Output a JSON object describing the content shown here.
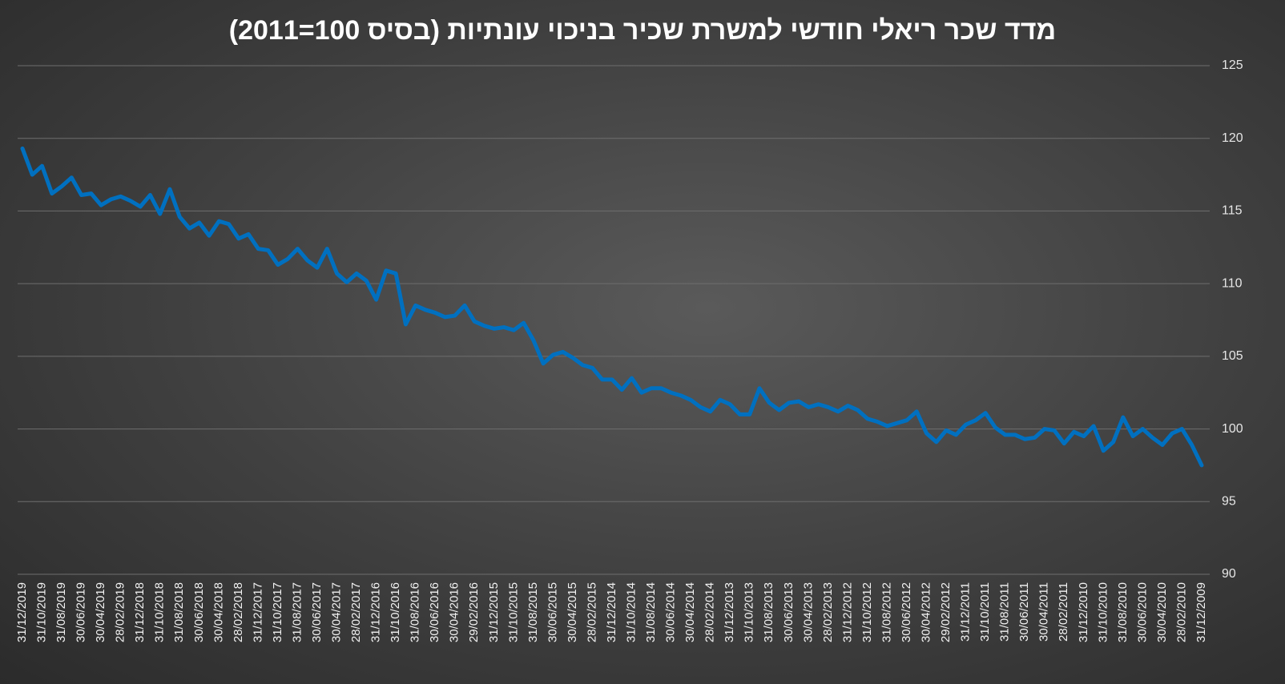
{
  "chart_data": {
    "type": "line",
    "title": "מדד שכר ריאלי חודשי למשרת שכיר בניכוי עונתיות (בסיס 100=2011)",
    "categories": [
      "31/12/2019",
      null,
      "31/10/2019",
      null,
      "31/08/2019",
      null,
      "30/06/2019",
      null,
      "30/04/2019",
      null,
      "28/02/2019",
      null,
      "31/12/2018",
      null,
      "31/10/2018",
      null,
      "31/08/2018",
      null,
      "30/06/2018",
      null,
      "30/04/2018",
      null,
      "28/02/2018",
      null,
      "31/12/2017",
      null,
      "31/10/2017",
      null,
      "31/08/2017",
      null,
      "30/06/2017",
      null,
      "30/04/2017",
      null,
      "28/02/2017",
      null,
      "31/12/2016",
      null,
      "31/10/2016",
      null,
      "31/08/2016",
      null,
      "30/06/2016",
      null,
      "30/04/2016",
      null,
      "29/02/2016",
      null,
      "31/12/2015",
      null,
      "31/10/2015",
      null,
      "31/08/2015",
      null,
      "30/06/2015",
      null,
      "30/04/2015",
      null,
      "28/02/2015",
      null,
      "31/12/2014",
      null,
      "31/10/2014",
      null,
      "31/08/2014",
      null,
      "30/06/2014",
      null,
      "30/04/2014",
      null,
      "28/02/2014",
      null,
      "31/12/2013",
      null,
      "31/10/2013",
      null,
      "31/08/2013",
      null,
      "30/06/2013",
      null,
      "30/04/2013",
      null,
      "28/02/2013",
      null,
      "31/12/2012",
      null,
      "31/10/2012",
      null,
      "31/08/2012",
      null,
      "30/06/2012",
      null,
      "30/04/2012",
      null,
      "29/02/2012",
      null,
      "31/12/2011",
      null,
      "31/10/2011",
      null,
      "31/08/2011",
      null,
      "30/06/2011",
      null,
      "30/04/2011",
      null,
      "28/02/2011",
      null,
      "31/12/2010",
      null,
      "31/10/2010",
      null,
      "31/08/2010",
      null,
      "30/06/2010",
      null,
      "30/04/2010",
      null,
      "28/02/2010",
      null,
      "31/12/2009"
    ],
    "values": [
      119.3,
      117.5,
      118.1,
      116.2,
      116.7,
      117.3,
      116.1,
      116.2,
      115.4,
      115.8,
      116.0,
      115.7,
      115.3,
      116.1,
      114.8,
      116.5,
      114.6,
      113.8,
      114.2,
      113.3,
      114.3,
      114.1,
      113.1,
      113.4,
      112.4,
      112.3,
      111.3,
      111.7,
      112.4,
      111.6,
      111.1,
      112.4,
      110.7,
      110.1,
      110.7,
      110.2,
      108.9,
      110.9,
      110.7,
      107.2,
      108.5,
      108.2,
      108.0,
      107.7,
      107.8,
      108.5,
      107.4,
      107.1,
      106.9,
      107.0,
      106.8,
      107.3,
      106.1,
      104.5,
      105.1,
      105.3,
      104.9,
      104.4,
      104.2,
      103.4,
      103.4,
      102.7,
      103.5,
      102.5,
      102.8,
      102.8,
      102.5,
      102.3,
      102.0,
      101.5,
      101.2,
      102.0,
      101.7,
      101.0,
      101.0,
      102.8,
      101.8,
      101.3,
      101.8,
      101.9,
      101.5,
      101.7,
      101.5,
      101.2,
      101.6,
      101.3,
      100.7,
      100.5,
      100.2,
      100.4,
      100.6,
      101.2,
      99.7,
      99.1,
      99.9,
      99.6,
      100.3,
      100.6,
      101.1,
      100.1,
      99.6,
      99.6,
      99.3,
      99.4,
      100.0,
      99.9,
      99.0,
      99.8,
      99.5,
      100.2,
      98.5,
      99.1,
      100.8,
      99.5,
      100.0,
      99.4,
      98.9,
      99.7,
      100.0,
      98.9,
      97.5
    ],
    "color": "#0070c0",
    "ylim": [
      90,
      125
    ],
    "yticks": [
      90,
      95,
      100,
      105,
      110,
      115,
      120,
      125
    ],
    "grid": true
  }
}
